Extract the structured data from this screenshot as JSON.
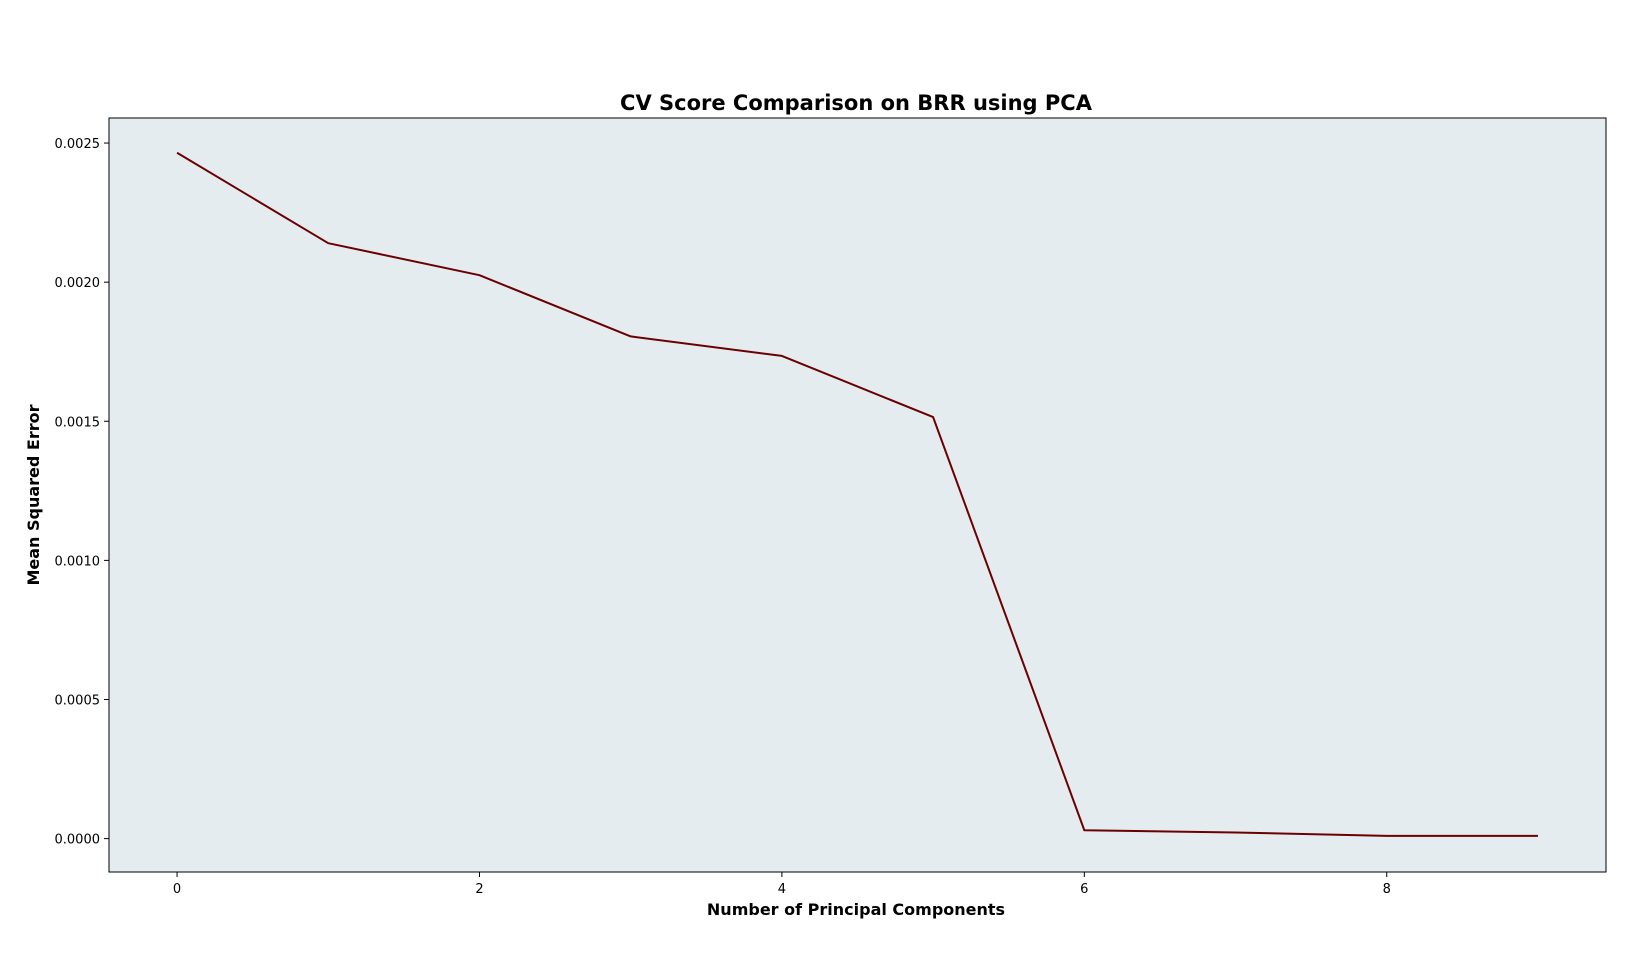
{
  "chart_data": {
    "type": "line",
    "title": "CV Score Comparison on BRR using PCA",
    "xlabel": "Number of Principal Components",
    "ylabel": "Mean Squared Error",
    "x": [
      0,
      1,
      2,
      3,
      4,
      5,
      6,
      7,
      8,
      9
    ],
    "series": [
      {
        "values": [
          0.002465,
          0.00214,
          0.002025,
          0.001805,
          0.001735,
          0.001515,
          3e-05,
          2.2e-05,
          1e-05,
          1e-05
        ]
      }
    ],
    "xlim": [
      -0.45,
      9.45
    ],
    "ylim": [
      -0.00012,
      0.00259
    ],
    "x_ticks": [
      0,
      2,
      4,
      6,
      8
    ],
    "x_tick_labels": [
      "0",
      "2",
      "4",
      "6",
      "8"
    ],
    "y_ticks": [
      0,
      0.0005,
      0.001,
      0.0015,
      0.002,
      0.0025
    ],
    "y_tick_labels": [
      "0.0000",
      "0.0005",
      "0.0010",
      "0.0015",
      "0.0020",
      "0.0025"
    ],
    "grid": false,
    "legend": "none",
    "colors": {
      "line": "#6b0000",
      "plot_background": "#e5ecf0",
      "axes_frame": "#000000"
    }
  }
}
